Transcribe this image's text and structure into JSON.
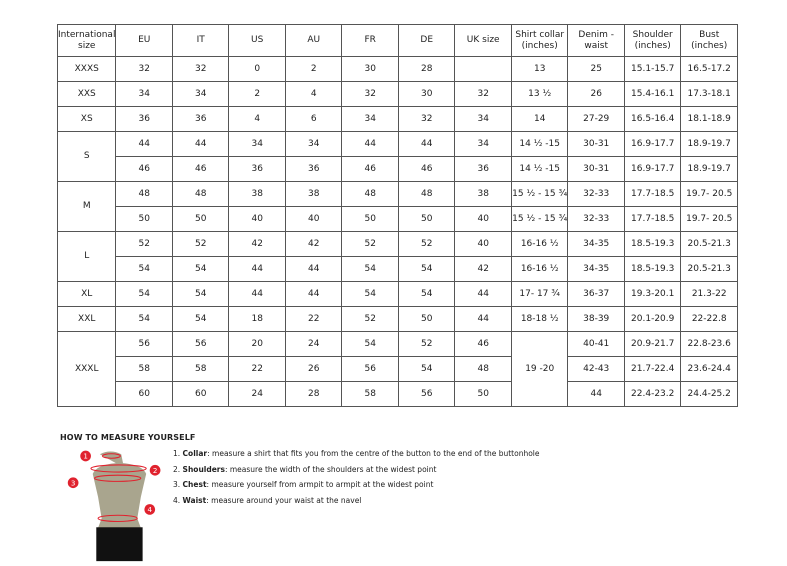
{
  "headers": [
    "International size",
    "EU",
    "IT",
    "US",
    "AU",
    "FR",
    "DE",
    "UK size",
    "Shirt collar (inches)",
    "Denim - waist",
    "Shoulder (inches)",
    "Bust (inches)"
  ],
  "sizes": [
    {
      "size": "XXXS",
      "rows": [
        [
          "32",
          "32",
          "0",
          "2",
          "30",
          "28",
          "",
          "13",
          "25",
          "15.1-15.7",
          "16.5-17.2"
        ]
      ]
    },
    {
      "size": "XXS",
      "rows": [
        [
          "34",
          "34",
          "2",
          "4",
          "32",
          "30",
          "32",
          "13 ½",
          "26",
          "15.4-16.1",
          "17.3-18.1"
        ]
      ]
    },
    {
      "size": "XS",
      "rows": [
        [
          "36",
          "36",
          "4",
          "6",
          "34",
          "32",
          "34",
          "14",
          "27-29",
          "16.5-16.4",
          "18.1-18.9"
        ]
      ]
    },
    {
      "size": "S",
      "rows": [
        [
          "44",
          "44",
          "34",
          "34",
          "44",
          "44",
          "34",
          "14 ½ -15",
          "30-31",
          "16.9-17.7",
          "18.9-19.7"
        ],
        [
          "46",
          "46",
          "36",
          "36",
          "46",
          "46",
          "36",
          "14 ½ -15",
          "30-31",
          "16.9-17.7",
          "18.9-19.7"
        ]
      ]
    },
    {
      "size": "M",
      "rows": [
        [
          "48",
          "48",
          "38",
          "38",
          "48",
          "48",
          "38",
          "15 ½ - 15 ¾",
          "32-33",
          "17.7-18.5",
          "19.7- 20.5"
        ],
        [
          "50",
          "50",
          "40",
          "40",
          "50",
          "50",
          "40",
          "15 ½ - 15 ¾",
          "32-33",
          "17.7-18.5",
          "19.7- 20.5"
        ]
      ]
    },
    {
      "size": "L",
      "rows": [
        [
          "52",
          "52",
          "42",
          "42",
          "52",
          "52",
          "40",
          "16-16 ½",
          "34-35",
          "18.5-19.3",
          "20.5-21.3"
        ],
        [
          "54",
          "54",
          "44",
          "44",
          "54",
          "54",
          "42",
          "16-16 ½",
          "34-35",
          "18.5-19.3",
          "20.5-21.3"
        ]
      ]
    },
    {
      "size": "XL",
      "rows": [
        [
          "54",
          "54",
          "44",
          "44",
          "54",
          "54",
          "44",
          "17- 17 ¾",
          "36-37",
          "19.3-20.1",
          "21.3-22"
        ]
      ]
    },
    {
      "size": "XXL",
      "rows": [
        [
          "54",
          "54",
          "18",
          "22",
          "52",
          "50",
          "44",
          "18-18 ½",
          "38-39",
          "20.1-20.9",
          "22-22.8"
        ]
      ]
    },
    {
      "size": "XXXL",
      "merged_collar": "19 -20",
      "rows": [
        [
          "56",
          "56",
          "20",
          "24",
          "54",
          "52",
          "46",
          "40-41",
          "20.9-21.7",
          "22.8-23.6"
        ],
        [
          "58",
          "58",
          "22",
          "26",
          "56",
          "54",
          "48",
          "42-43",
          "21.7-22.4",
          "23.6-24.4"
        ],
        [
          "60",
          "60",
          "24",
          "28",
          "58",
          "56",
          "50",
          "44",
          "22.4-23.2",
          "24.4-25.2"
        ]
      ]
    }
  ],
  "measure": {
    "title": "HOW TO MEASURE YOURSELF",
    "items": [
      {
        "num": "1.",
        "term": "Collar",
        "text": ": measure a shirt that fits you from the centre of the button to the end of the buttonhole"
      },
      {
        "num": "2.",
        "term": "Shoulders",
        "text": ": measure the width of the shoulders at the widest point"
      },
      {
        "num": "3.",
        "term": "Chest",
        "text": ": measure yourself from armpit to armpit at the widest point"
      },
      {
        "num": "4.",
        "term": "Waist",
        "text": ": measure around your waist at the navel"
      }
    ],
    "markers": [
      "1",
      "2",
      "3",
      "4"
    ],
    "accent": "#e0222e"
  }
}
